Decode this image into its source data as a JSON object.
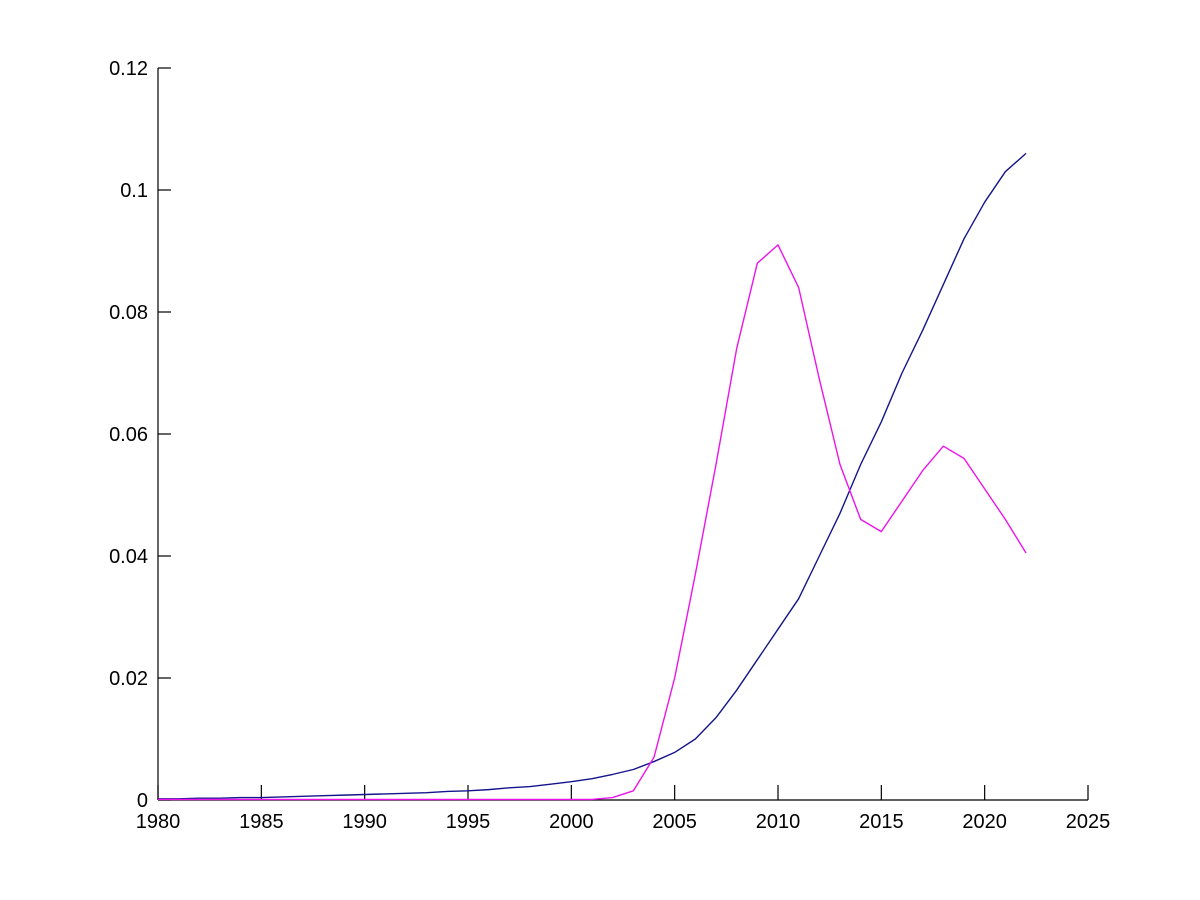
{
  "figure": {
    "background": "#FFFFFF",
    "axis_color": "#000000",
    "tick_label_color": "#000000"
  },
  "chart_data": {
    "type": "line",
    "title": "",
    "xlabel": "",
    "ylabel": "",
    "grid": false,
    "legend": "none",
    "xlim": [
      1980,
      2025
    ],
    "ylim": [
      0,
      0.12
    ],
    "x_ticks": [
      {
        "value": 1980,
        "label": "1980"
      },
      {
        "value": 1985,
        "label": "1985"
      },
      {
        "value": 1990,
        "label": "1990"
      },
      {
        "value": 1995,
        "label": "1995"
      },
      {
        "value": 2000,
        "label": "2000"
      },
      {
        "value": 2005,
        "label": "2005"
      },
      {
        "value": 2010,
        "label": "2010"
      },
      {
        "value": 2015,
        "label": "2015"
      },
      {
        "value": 2020,
        "label": "2020"
      },
      {
        "value": 2025,
        "label": "2025"
      }
    ],
    "y_ticks": [
      {
        "value": 0,
        "label": "0"
      },
      {
        "value": 0.02,
        "label": "0.02"
      },
      {
        "value": 0.04,
        "label": "0.04"
      },
      {
        "value": 0.06,
        "label": "0.06"
      },
      {
        "value": 0.08,
        "label": "0.08"
      },
      {
        "value": 0.1,
        "label": "0.1"
      },
      {
        "value": 0.12,
        "label": "0.12"
      }
    ],
    "x": [
      1980,
      1981,
      1982,
      1983,
      1984,
      1985,
      1986,
      1987,
      1988,
      1989,
      1990,
      1991,
      1992,
      1993,
      1994,
      1995,
      1996,
      1997,
      1998,
      1999,
      2000,
      2001,
      2002,
      2003,
      2004,
      2005,
      2006,
      2007,
      2008,
      2009,
      2010,
      2011,
      2012,
      2013,
      2014,
      2015,
      2016,
      2017,
      2018,
      2019,
      2020,
      2021,
      2022
    ],
    "series": [
      {
        "name": "dark-blue",
        "color": "#14148C",
        "values": [
          0.0002,
          0.0002,
          0.0003,
          0.0003,
          0.0004,
          0.0004,
          0.0005,
          0.0006,
          0.0007,
          0.0008,
          0.0009,
          0.001,
          0.0011,
          0.0012,
          0.0014,
          0.0015,
          0.0017,
          0.002,
          0.0022,
          0.0026,
          0.003,
          0.0035,
          0.0042,
          0.005,
          0.0063,
          0.0078,
          0.01,
          0.0135,
          0.018,
          0.023,
          0.028,
          0.033,
          0.04,
          0.047,
          0.055,
          0.062,
          0.07,
          0.077,
          0.0845,
          0.092,
          0.098,
          0.103,
          0.106
        ]
      },
      {
        "name": "magenta",
        "color": "#EC13EC",
        "values": [
          0.0001,
          0.0001,
          0.0001,
          0.0001,
          0.0001,
          0.0001,
          0.0001,
          0.0001,
          0.0001,
          0.0001,
          0.0001,
          0.0001,
          0.0001,
          0.0001,
          0.0001,
          0.0001,
          0.0001,
          0.0001,
          0.0001,
          0.0001,
          0.0001,
          0.0001,
          0.0004,
          0.0015,
          0.007,
          0.02,
          0.037,
          0.055,
          0.074,
          0.088,
          0.091,
          0.084,
          0.069,
          0.055,
          0.046,
          0.044,
          0.049,
          0.054,
          0.058,
          0.056,
          0.051,
          0.046,
          0.0405
        ]
      }
    ]
  }
}
